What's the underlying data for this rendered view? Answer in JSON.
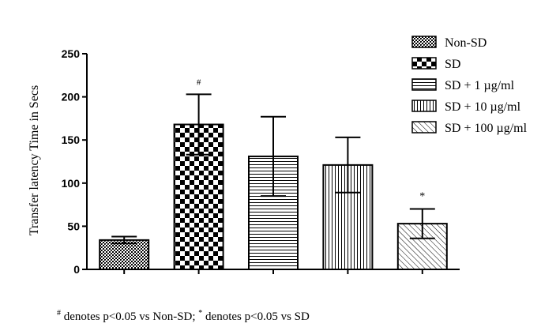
{
  "chart_data": {
    "type": "bar",
    "ylabel": "Transfer latency Time in Secs",
    "xlabel": "",
    "ylim": [
      0,
      250
    ],
    "yticks": [
      0,
      50,
      100,
      150,
      200,
      250
    ],
    "categories": [
      "Non-SD",
      "SD",
      "SD + 1 µg/ml",
      "SD + 10 µg/ml",
      "SD + 100 µg/ml"
    ],
    "values": [
      34,
      168,
      131,
      121,
      53
    ],
    "errors": [
      4,
      35,
      46,
      32,
      17
    ],
    "annotations": [
      "",
      "#",
      "",
      "",
      "*"
    ],
    "legend": {
      "position": "top-right",
      "entries": [
        {
          "label": "Non-SD",
          "pattern": "cross-dense"
        },
        {
          "label": "SD",
          "pattern": "checker"
        },
        {
          "label": "SD + 1 µg/ml",
          "pattern": "horizontal-lines"
        },
        {
          "label": "SD + 10 µg/ml",
          "pattern": "vertical-lines"
        },
        {
          "label": "SD + 100 µg/ml",
          "pattern": "diagonal-lines"
        }
      ]
    },
    "grid": false
  },
  "footnote": {
    "mark1": "#",
    "text1": " denotes p<0.05 vs Non-SD; ",
    "mark2": "*",
    "text2": " denotes p<0.05 vs SD"
  }
}
